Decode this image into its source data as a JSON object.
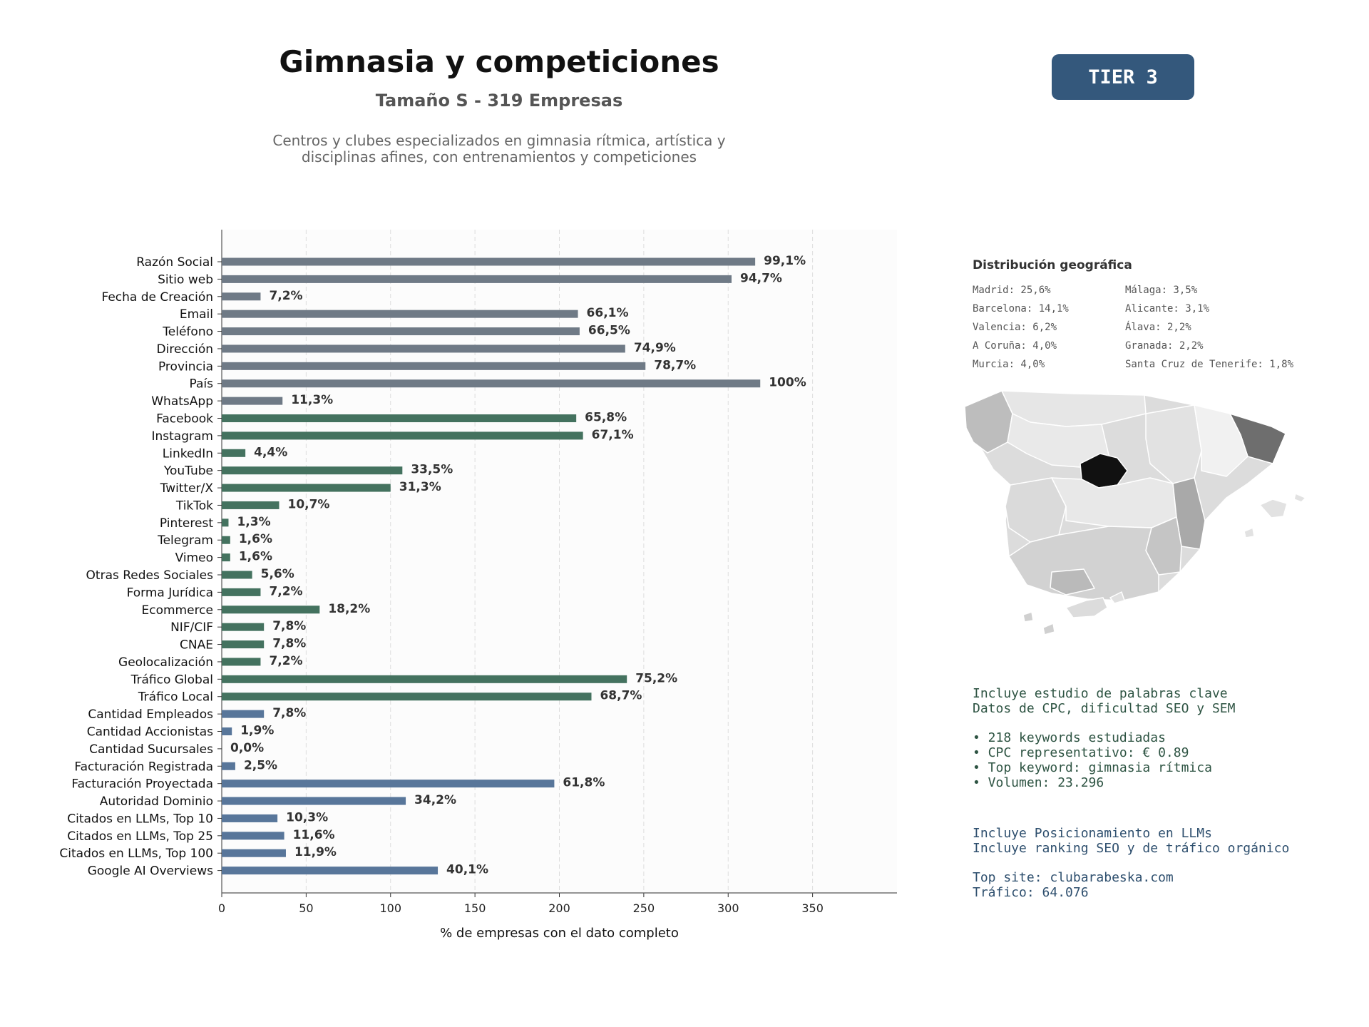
{
  "header": {
    "title": "Gimnasia y competiciones",
    "subtitle": "Tamaño S - 319 Empresas",
    "description_line1": "Centros y clubes especializados en gimnasia rítmica, artística y",
    "description_line2": "disciplinas afines, con entrenamientos y competiciones",
    "tier_badge": "TIER 3"
  },
  "chart_data": {
    "type": "bar",
    "orientation": "horizontal",
    "xlabel": "% de empresas con el dato completo",
    "ylabel": "",
    "xlim": [
      0,
      400
    ],
    "xticks": [
      0,
      50,
      100,
      150,
      200,
      250,
      300,
      350
    ],
    "grid": "vertical dashed",
    "categories": [
      "Razón Social",
      "Sitio web",
      "Fecha de Creación",
      "Email",
      "Teléfono",
      "Dirección",
      "Provincia",
      "País",
      "WhatsApp",
      "Facebook",
      "Instagram",
      "LinkedIn",
      "YouTube",
      "Twitter/X",
      "TikTok",
      "Pinterest",
      "Telegram",
      "Vimeo",
      "Otras Redes Sociales",
      "Forma Jurídica",
      "Ecommerce",
      "NIF/CIF",
      "CNAE",
      "Geolocalización",
      "Tráfico Global",
      "Tráfico Local",
      "Cantidad Empleados",
      "Cantidad Accionistas",
      "Cantidad Sucursales",
      "Facturación Registrada",
      "Facturación Proyectada",
      "Autoridad Dominio",
      "Citados en LLMs, Top 10",
      "Citados en LLMs, Top 25",
      "Citados en LLMs, Top 100",
      "Google AI Overviews"
    ],
    "values": [
      316,
      302,
      23,
      211,
      212,
      239,
      251,
      319,
      36,
      210,
      214,
      14,
      107,
      100,
      34,
      4,
      5,
      5,
      18,
      23,
      58,
      25,
      25,
      23,
      240,
      219,
      25,
      6,
      0,
      8,
      197,
      109,
      33,
      37,
      38,
      128
    ],
    "data_labels": [
      "99,1%",
      "94,7%",
      "7,2%",
      "66,1%",
      "66,5%",
      "74,9%",
      "78,7%",
      "100%",
      "11,3%",
      "65,8%",
      "67,1%",
      "4,4%",
      "33,5%",
      "31,3%",
      "10,7%",
      "1,3%",
      "1,6%",
      "1,6%",
      "5,6%",
      "7,2%",
      "18,2%",
      "7,8%",
      "7,8%",
      "7,2%",
      "75,2%",
      "68,7%",
      "7,8%",
      "1,9%",
      "0,0%",
      "2,5%",
      "61,8%",
      "34,2%",
      "10,3%",
      "11,6%",
      "11,9%",
      "40,1%"
    ],
    "groups": [
      "contact",
      "contact",
      "contact",
      "contact",
      "contact",
      "contact",
      "contact",
      "contact",
      "contact",
      "digital",
      "digital",
      "digital",
      "digital",
      "digital",
      "digital",
      "digital",
      "digital",
      "digital",
      "digital",
      "digital",
      "digital",
      "digital",
      "digital",
      "digital",
      "digital",
      "digital",
      "business",
      "business",
      "business",
      "business",
      "business",
      "business",
      "business",
      "business",
      "business",
      "business"
    ],
    "colors": {
      "contact": "#6f7a86",
      "digital": "#44725f",
      "business": "#58769a"
    }
  },
  "geo": {
    "title": "Distribución geográfica",
    "items": [
      "Madrid: 25,6%",
      "Málaga: 3,5%",
      "Barcelona: 14,1%",
      "Alicante: 3,1%",
      "Valencia: 6,2%",
      "Álava: 2,2%",
      "A Coruña: 4,0%",
      "Granada: 2,2%",
      "Murcia: 4,0%",
      "Santa Cruz de Tenerife: 1,8%"
    ]
  },
  "seo": {
    "line1": "Incluye estudio de palabras clave",
    "line2": "Datos de CPC, dificultad SEO y SEM",
    "bullet1": "• 218 keywords estudiadas",
    "bullet2": "• CPC representativo: € 0.89",
    "bullet3": "• Top keyword: gimnasia rítmica",
    "bullet4": "• Volumen: 23.296"
  },
  "llm": {
    "line1": "Incluye Posicionamiento en LLMs",
    "line2": "Incluye ranking SEO y de tráfico orgánico",
    "top_site": "Top site: clubarabeska.com",
    "traffic": "Tráfico: 64.076"
  }
}
